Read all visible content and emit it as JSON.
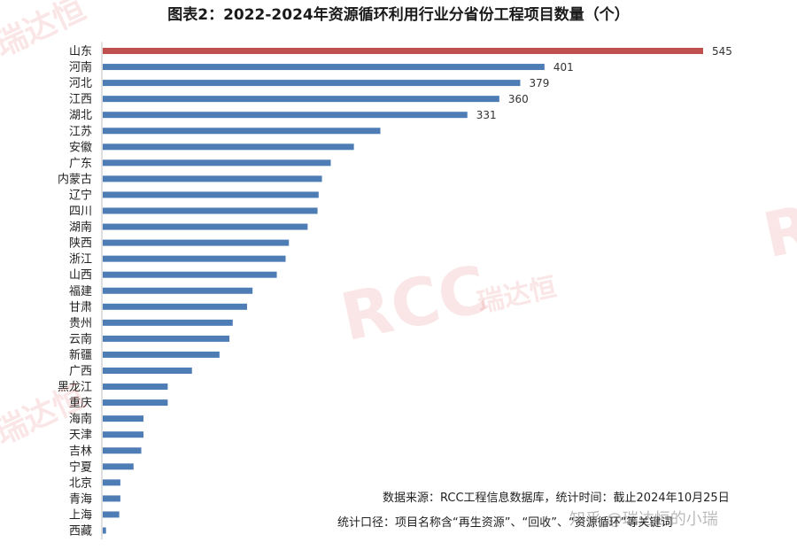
{
  "chart_data": {
    "type": "bar",
    "orientation": "horizontal",
    "title": "图表2：2022-2024年资源循环利用行业分省份工程项目数量（个）",
    "categories": [
      "山东",
      "河南",
      "河北",
      "江西",
      "湖北",
      "江苏",
      "安徽",
      "广东",
      "内蒙古",
      "辽宁",
      "四川",
      "湖南",
      "陕西",
      "浙江",
      "山西",
      "福建",
      "甘肃",
      "贵州",
      "云南",
      "新疆",
      "广西",
      "黑龙江",
      "重庆",
      "海南",
      "天津",
      "吉林",
      "宁夏",
      "北京",
      "青海",
      "上海",
      "西藏"
    ],
    "values": [
      545,
      401,
      379,
      360,
      331,
      252,
      228,
      207,
      199,
      196,
      195,
      186,
      169,
      166,
      158,
      136,
      131,
      118,
      115,
      106,
      81,
      59,
      59,
      37,
      37,
      35,
      28,
      16,
      16,
      15,
      3
    ],
    "data_labels": {
      "山东": "545",
      "河南": "401",
      "河北": "379",
      "江西": "360",
      "湖北": "331"
    },
    "highlight_category": "山东",
    "colors": {
      "bar": "#4e7db5",
      "highlight": "#c0504d"
    },
    "xlim": [
      0,
      560
    ],
    "grid": false,
    "xlabel": "",
    "ylabel": ""
  },
  "notes": {
    "source": "数据来源：RCC工程信息数据库，统计时间：截止2024年10月25日",
    "scope": "统计口径：项目名称含“再生资源”、“回收”、“资源循环”等关键词"
  },
  "watermarks": {
    "brand": "RCC",
    "brand_cn": "瑞达恒",
    "zhihu": "知乎 @瑞达恒的小瑞"
  }
}
